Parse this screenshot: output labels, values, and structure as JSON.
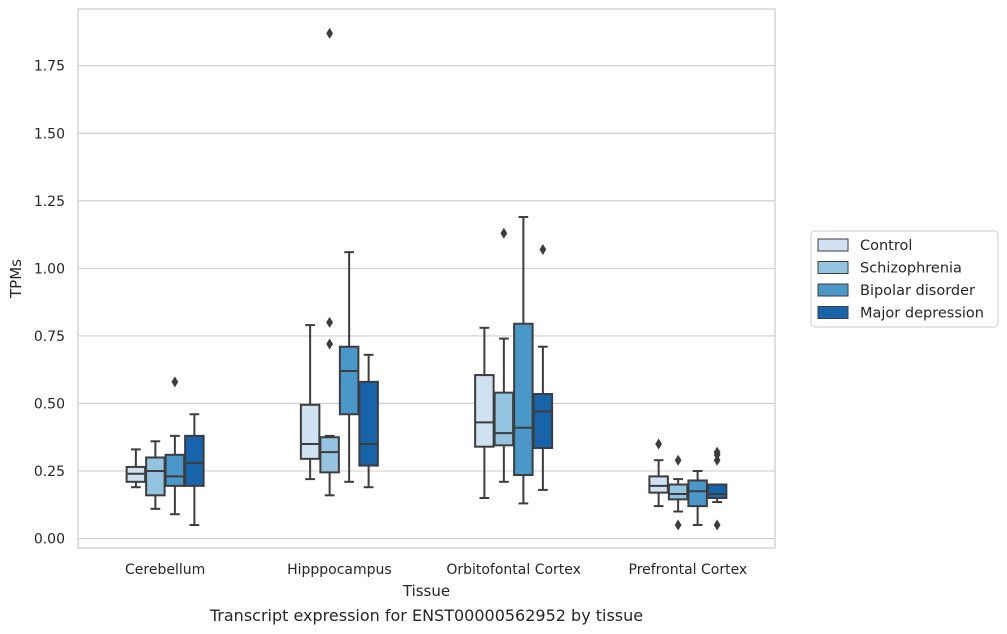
{
  "chart_data": {
    "type": "box",
    "caption": "Transcript expression for ENST00000562952 by tissue",
    "xlabel": "Tissue",
    "ylabel": "TPMs",
    "ylim": [
      -0.035,
      1.96
    ],
    "yticks": [
      0.0,
      0.25,
      0.5,
      0.75,
      1.0,
      1.25,
      1.5,
      1.75
    ],
    "ytick_labels": [
      "0.00",
      "0.25",
      "0.50",
      "0.75",
      "1.00",
      "1.25",
      "1.50",
      "1.75"
    ],
    "grid": "horizontal",
    "legend_position": "right",
    "categories": [
      "Cerebellum",
      "Hipppocampus",
      "Orbitofontal Cortex",
      "Prefrontal Cortex"
    ],
    "series": [
      {
        "name": "Control",
        "color": "#d0e1f2",
        "boxes": [
          {
            "whislo": 0.19,
            "q1": 0.21,
            "med": 0.24,
            "q3": 0.265,
            "whishi": 0.33,
            "fliers": []
          },
          {
            "whislo": 0.22,
            "q1": 0.295,
            "med": 0.35,
            "q3": 0.495,
            "whishi": 0.79,
            "fliers": []
          },
          {
            "whislo": 0.15,
            "q1": 0.34,
            "med": 0.43,
            "q3": 0.605,
            "whishi": 0.78,
            "fliers": []
          },
          {
            "whislo": 0.12,
            "q1": 0.17,
            "med": 0.195,
            "q3": 0.23,
            "whishi": 0.29,
            "fliers": [
              0.35
            ]
          }
        ]
      },
      {
        "name": "Schizophrenia",
        "color": "#94c4df",
        "boxes": [
          {
            "whislo": 0.11,
            "q1": 0.16,
            "med": 0.25,
            "q3": 0.3,
            "whishi": 0.36,
            "fliers": []
          },
          {
            "whislo": 0.16,
            "q1": 0.245,
            "med": 0.32,
            "q3": 0.375,
            "whishi": 0.38,
            "fliers": [
              0.72,
              0.8,
              1.87
            ]
          },
          {
            "whislo": 0.21,
            "q1": 0.345,
            "med": 0.39,
            "q3": 0.54,
            "whishi": 0.74,
            "fliers": [
              1.13
            ]
          },
          {
            "whislo": 0.1,
            "q1": 0.145,
            "med": 0.165,
            "q3": 0.2,
            "whishi": 0.22,
            "fliers": [
              0.05,
              0.29
            ]
          }
        ]
      },
      {
        "name": "Bipolar disorder",
        "color": "#4a98c9",
        "boxes": [
          {
            "whislo": 0.09,
            "q1": 0.195,
            "med": 0.23,
            "q3": 0.31,
            "whishi": 0.38,
            "fliers": [
              0.58
            ]
          },
          {
            "whislo": 0.21,
            "q1": 0.46,
            "med": 0.62,
            "q3": 0.71,
            "whishi": 1.06,
            "fliers": []
          },
          {
            "whislo": 0.13,
            "q1": 0.235,
            "med": 0.41,
            "q3": 0.795,
            "whishi": 1.19,
            "fliers": []
          },
          {
            "whislo": 0.05,
            "q1": 0.12,
            "med": 0.175,
            "q3": 0.215,
            "whishi": 0.25,
            "fliers": []
          }
        ]
      },
      {
        "name": "Major depression",
        "color": "#1764ab",
        "boxes": [
          {
            "whislo": 0.05,
            "q1": 0.195,
            "med": 0.28,
            "q3": 0.38,
            "whishi": 0.46,
            "fliers": []
          },
          {
            "whislo": 0.19,
            "q1": 0.27,
            "med": 0.35,
            "q3": 0.58,
            "whishi": 0.68,
            "fliers": []
          },
          {
            "whislo": 0.18,
            "q1": 0.335,
            "med": 0.47,
            "q3": 0.535,
            "whishi": 0.71,
            "fliers": [
              1.07
            ]
          },
          {
            "whislo": 0.135,
            "q1": 0.15,
            "med": 0.165,
            "q3": 0.2,
            "whishi": 0.2,
            "fliers": [
              0.05,
              0.29,
              0.31,
              0.32
            ]
          }
        ]
      }
    ]
  }
}
